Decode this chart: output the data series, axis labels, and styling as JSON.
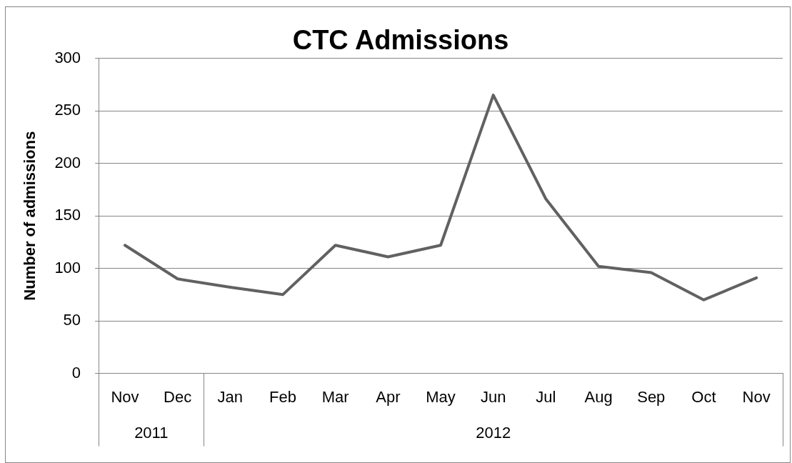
{
  "chart_data": {
    "type": "line",
    "title": "CTC Admissions",
    "ylabel": "Number of admissions",
    "categories": [
      "Nov",
      "Dec",
      "Jan",
      "Feb",
      "Mar",
      "Apr",
      "May",
      "Jun",
      "Jul",
      "Aug",
      "Sep",
      "Oct",
      "Nov"
    ],
    "values": [
      122,
      90,
      82,
      75,
      122,
      111,
      122,
      265,
      166,
      102,
      96,
      70,
      91
    ],
    "color": "#616161",
    "ylim": [
      0,
      300
    ],
    "yticks": [
      0,
      50,
      100,
      150,
      200,
      250,
      300
    ],
    "grid": "y",
    "line_style": "solid",
    "annotations": [
      "2011",
      "2012"
    ]
  }
}
